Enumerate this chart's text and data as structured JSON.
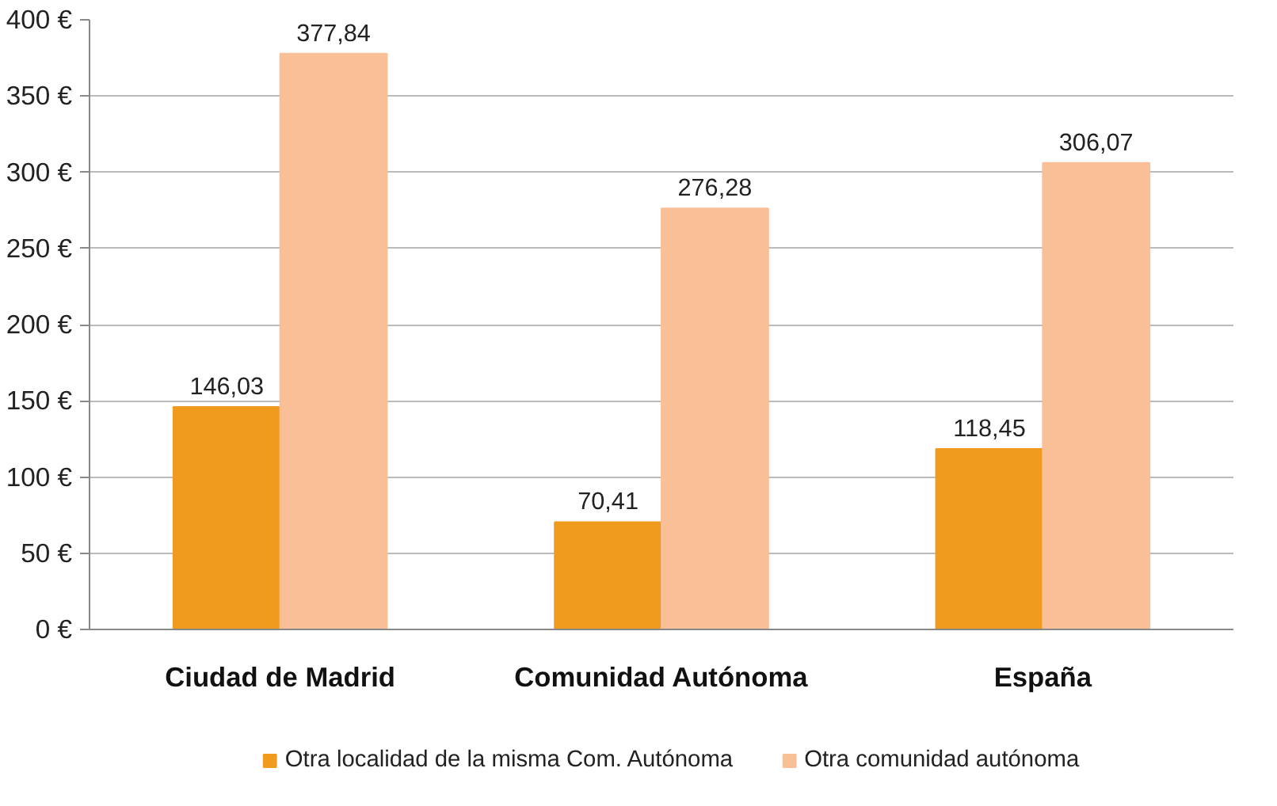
{
  "chart_data": {
    "type": "bar",
    "categories": [
      "Ciudad de Madrid",
      "Comunidad Autónoma",
      "España"
    ],
    "series": [
      {
        "name": "Otra localidad de la misma Com. Autónoma",
        "color": "#f09a1e",
        "values": [
          146.03,
          70.41,
          118.45
        ],
        "value_labels": [
          "146,03",
          "70,41",
          "118,45"
        ]
      },
      {
        "name": "Otra comunidad autónoma",
        "color": "#f9bf97",
        "values": [
          377.84,
          276.28,
          306.07
        ],
        "value_labels": [
          "377,84",
          "276,28",
          "306,07"
        ]
      }
    ],
    "ylim": [
      0,
      400
    ],
    "yticks": [
      {
        "value": 0,
        "label": "0 €"
      },
      {
        "value": 50,
        "label": "50 €"
      },
      {
        "value": 100,
        "label": "100 €"
      },
      {
        "value": 150,
        "label": "150 €"
      },
      {
        "value": 200,
        "label": "200 €"
      },
      {
        "value": 250,
        "label": "250 €"
      },
      {
        "value": 300,
        "label": "300 €"
      },
      {
        "value": 350,
        "label": "350 €"
      },
      {
        "value": 400,
        "label": "400 €"
      }
    ],
    "grid": "y",
    "legend": "bottom"
  }
}
